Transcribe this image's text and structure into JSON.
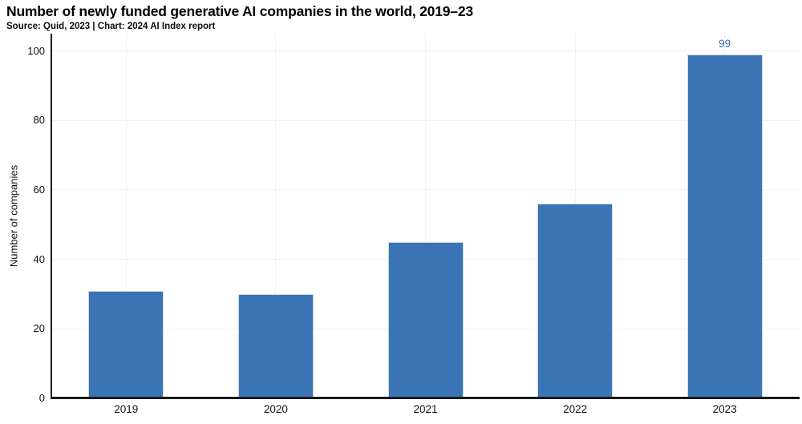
{
  "chart_data": {
    "type": "bar",
    "title": "Number of newly funded generative AI companies in the world, 2019–23",
    "subtitle": "Source: Quid, 2023 | Chart: 2024 AI Index report",
    "xlabel": "",
    "ylabel": "Number of companies",
    "categories": [
      "2019",
      "2020",
      "2021",
      "2022",
      "2023"
    ],
    "values": [
      31,
      30,
      45,
      56,
      99
    ],
    "data_labels": [
      "",
      "",
      "",
      "",
      "99"
    ],
    "yticks": [
      0,
      20,
      40,
      60,
      80,
      100
    ],
    "ylim": [
      0,
      100
    ],
    "grid": "light horizontal and vertical gridlines",
    "legend": "none",
    "colors": {
      "bar_fill": "#3a74b4",
      "bar_edge": "#ccd9ea",
      "value_label": "#2e6cb0",
      "axis_line": "#1a1a1a",
      "gridline": "#f0f0f0",
      "text": "#111111"
    }
  }
}
